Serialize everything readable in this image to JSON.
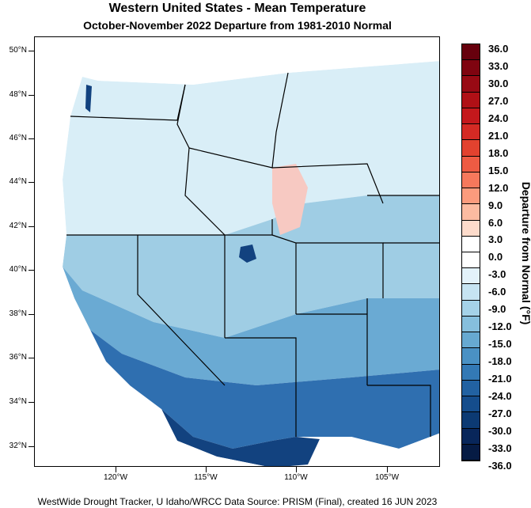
{
  "title": "Western United States - Mean Temperature",
  "subtitle": "October-November 2022  Departure from 1981-2010 Normal",
  "footer": "WestWide Drought Tracker, U Idaho/WRCC Data Source: PRISM (Final), created 16 JUN 2023",
  "colorbar": {
    "title": "Departure from Normal (°F)",
    "labels": [
      "36.0",
      "33.0",
      "30.0",
      "27.0",
      "24.0",
      "21.0",
      "18.0",
      "15.0",
      "12.0",
      "9.0",
      "6.0",
      "3.0",
      "0.0",
      "-3.0",
      "-6.0",
      "-9.0",
      "-12.0",
      "-15.0",
      "-18.0",
      "-21.0",
      "-24.0",
      "-27.0",
      "-30.0",
      "-33.0",
      "-36.0"
    ],
    "colors": [
      "#67000d",
      "#7f0410",
      "#980a14",
      "#b01016",
      "#c4181c",
      "#d42a24",
      "#e2422f",
      "#ee5b43",
      "#f6785c",
      "#fb9b7d",
      "#fcbba1",
      "#fddbcb",
      "#ffffff",
      "#ffffff",
      "#e3f2fa",
      "#c6e4f2",
      "#a5d2e8",
      "#86bfdd",
      "#67a9d1",
      "#4a91c4",
      "#3379b5",
      "#2262a2",
      "#154d8c",
      "#0c3a73",
      "#08265a",
      "#061b44"
    ]
  },
  "axes": {
    "lat_labels": [
      "50°N",
      "48°N",
      "46°N",
      "44°N",
      "42°N",
      "40°N",
      "38°N",
      "36°N",
      "34°N",
      "32°N"
    ],
    "lon_labels": [
      "120°W",
      "115°W",
      "110°W",
      "105°W"
    ]
  },
  "map_colors": {
    "north": "#d9eef7",
    "north_mid": "#bfe1f0",
    "mid": "#9fcde4",
    "coast": "#6aaad3",
    "south": "#2f6fb0",
    "far_south": "#12427f",
    "warm": "#f7c9c2"
  }
}
